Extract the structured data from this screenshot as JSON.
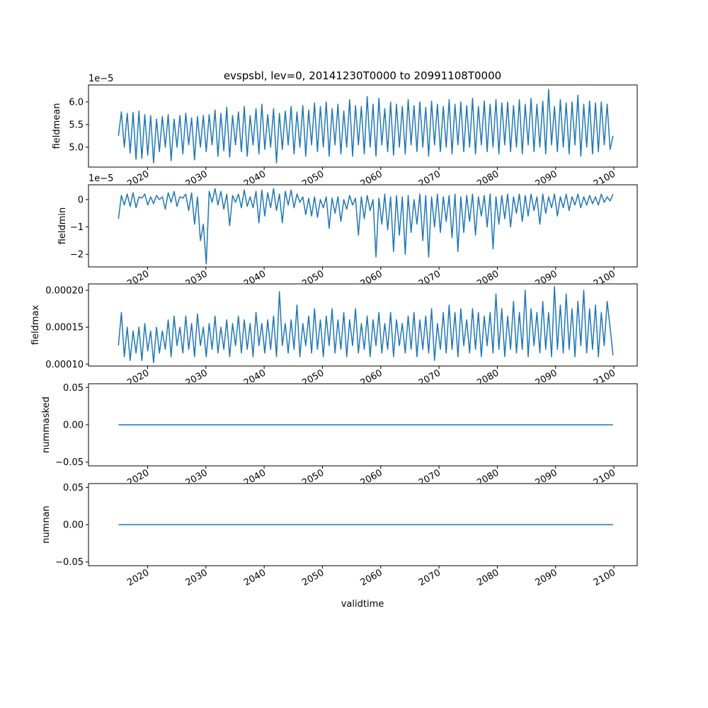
{
  "chart_data": [
    {
      "type": "line",
      "title": "evspsbl, lev=0, 20141230T0000 to 20991108T0000",
      "ylabel": "fieldmean",
      "offset_text": "1e−5",
      "unit_multiplier": 1e-05,
      "ylim": [
        4.56,
        6.375
      ],
      "yticks": [
        {
          "value": 5.0,
          "label": "5.0"
        },
        {
          "value": 5.5,
          "label": "5.5"
        },
        {
          "value": 6.0,
          "label": "6.0"
        }
      ],
      "x_start": 2015.0,
      "x_end": 2099.85,
      "color": "#1f77b4",
      "values": [
        5.25,
        5.78,
        5.0,
        5.75,
        4.87,
        5.77,
        4.73,
        5.8,
        4.75,
        5.72,
        4.82,
        5.7,
        4.65,
        5.62,
        4.9,
        5.68,
        5.0,
        5.72,
        4.7,
        5.62,
        5.0,
        5.7,
        4.85,
        5.75,
        5.05,
        5.65,
        4.72,
        5.68,
        5.0,
        5.7,
        4.9,
        5.72,
        5.05,
        5.82,
        4.8,
        5.75,
        4.92,
        5.88,
        4.78,
        5.7,
        5.05,
        5.78,
        4.9,
        5.9,
        4.8,
        5.7,
        5.05,
        5.85,
        4.85,
        5.95,
        4.95,
        5.72,
        5.0,
        5.85,
        4.65,
        5.75,
        4.95,
        5.8,
        5.05,
        5.9,
        4.85,
        5.78,
        5.0,
        5.92,
        4.8,
        5.82,
        5.05,
        5.98,
        4.9,
        5.9,
        5.0,
        6.0,
        4.8,
        5.85,
        5.05,
        5.95,
        4.85,
        5.8,
        5.0,
        6.05,
        4.8,
        5.92,
        5.05,
        5.9,
        4.85,
        6.12,
        5.0,
        5.95,
        4.8,
        6.08,
        5.05,
        5.85,
        4.9,
        6.0,
        4.82,
        5.95,
        5.0,
        5.9,
        4.85,
        6.05,
        5.05,
        5.92,
        4.9,
        6.0,
        5.0,
        5.88,
        4.8,
        6.02,
        5.05,
        5.95,
        4.9,
        5.9,
        5.0,
        6.05,
        4.85,
        5.95,
        5.05,
        6.0,
        4.9,
        5.92,
        5.0,
        6.08,
        4.85,
        5.9,
        5.05,
        6.02,
        4.9,
        5.95,
        5.0,
        6.05,
        4.85,
        5.98,
        5.05,
        6.0,
        4.9,
        5.92,
        5.0,
        6.05,
        4.85,
        5.95,
        5.05,
        6.08,
        4.9,
        5.95,
        5.0,
        6.02,
        4.85,
        6.28,
        5.05,
        5.9,
        4.9,
        6.05,
        5.0,
        5.98,
        4.85,
        6.0,
        5.05,
        6.15,
        4.8,
        5.95,
        5.0,
        6.02,
        4.85,
        5.98,
        4.9,
        6.0,
        5.05,
        5.95,
        4.95,
        5.25
      ]
    },
    {
      "type": "line",
      "ylabel": "fieldmin",
      "offset_text": "1e−5",
      "unit_multiplier": 1e-05,
      "ylim": [
        -2.46,
        0.54
      ],
      "yticks": [
        {
          "value": -2,
          "label": "−2"
        },
        {
          "value": -1,
          "label": "−1"
        },
        {
          "value": 0,
          "label": "0"
        }
      ],
      "x_start": 2015.0,
      "x_end": 2099.85,
      "color": "#1f77b4",
      "values": [
        -0.7,
        0.15,
        -0.2,
        0.2,
        -0.25,
        0.25,
        -0.3,
        0.1,
        0.05,
        0.2,
        -0.2,
        0.1,
        -0.15,
        0.15,
        0.0,
        0.1,
        -0.35,
        0.25,
        -0.1,
        0.3,
        -0.25,
        0.1,
        0.05,
        0.2,
        -0.4,
        0.25,
        -0.9,
        0.1,
        -1.5,
        -0.9,
        -2.35,
        0.3,
        -0.1,
        0.4,
        -0.2,
        0.3,
        -0.35,
        0.2,
        -0.95,
        0.15,
        -0.1,
        0.2,
        -0.3,
        0.35,
        -0.25,
        0.1,
        -0.3,
        0.3,
        -0.85,
        0.35,
        -0.6,
        0.25,
        -0.3,
        0.4,
        -0.4,
        0.2,
        -0.85,
        0.3,
        -0.2,
        0.35,
        -0.3,
        0.2,
        -0.1,
        0.1,
        -0.55,
        0.05,
        -0.6,
        0.1,
        -0.65,
        0.0,
        -0.3,
        0.1,
        -1.05,
        0.05,
        -0.5,
        0.1,
        -0.8,
        0.0,
        -0.35,
        0.15,
        -0.2,
        0.05,
        -1.3,
        0.1,
        -0.7,
        0.15,
        -0.4,
        0.0,
        -2.1,
        0.05,
        -0.9,
        0.2,
        -1.1,
        0.1,
        -1.9,
        0.15,
        -1.3,
        0.1,
        -2.0,
        0.15,
        -1.2,
        0.0,
        -0.9,
        0.2,
        -1.5,
        0.15,
        -2.1,
        0.1,
        -1.0,
        0.2,
        -1.2,
        0.1,
        -0.8,
        0.15,
        -1.4,
        0.2,
        -1.9,
        0.1,
        -1.2,
        0.15,
        -0.8,
        0.2,
        -1.3,
        0.1,
        -0.6,
        0.15,
        -1.0,
        0.2,
        -1.8,
        0.1,
        -0.9,
        0.15,
        -0.7,
        0.2,
        -1.0,
        0.1,
        -0.5,
        0.2,
        -0.8,
        0.15,
        -0.6,
        0.2,
        -0.4,
        0.1,
        -0.9,
        0.2,
        -0.5,
        0.1,
        -0.3,
        0.2,
        -0.6,
        0.1,
        -0.3,
        0.2,
        -0.4,
        0.1,
        -0.2,
        0.2,
        -0.3,
        0.1,
        -0.2,
        0.15,
        -0.15,
        0.1,
        -0.2,
        0.2,
        -0.1,
        0.1,
        -0.05,
        0.2
      ]
    },
    {
      "type": "line",
      "ylabel": "fieldmax",
      "unit_multiplier": 1e-05,
      "ylim": [
        9.74,
        20.86
      ],
      "yticks": [
        {
          "value": 10,
          "label": "0.00010"
        },
        {
          "value": 15,
          "label": "0.00015"
        },
        {
          "value": 20,
          "label": "0.00020"
        }
      ],
      "x_start": 2015.0,
      "x_end": 2099.85,
      "color": "#1f77b4",
      "values": [
        12.5,
        17,
        11,
        15,
        10.5,
        14.5,
        11.5,
        15,
        10.5,
        15.5,
        11.8,
        14.5,
        10.2,
        15,
        11.5,
        14.5,
        12,
        16,
        11,
        16.5,
        12.5,
        15,
        11.5,
        16.5,
        12,
        15.5,
        11,
        16.8,
        12.5,
        15,
        11,
        15.5,
        12,
        16.5,
        11.5,
        15,
        12,
        16,
        11,
        15.5,
        12.5,
        16.5,
        11.5,
        16,
        12,
        15.5,
        11,
        17,
        12.5,
        15.5,
        11.5,
        16,
        12,
        16.5,
        11,
        19.8,
        12.5,
        15.5,
        11.5,
        16,
        12,
        18,
        11,
        15.5,
        12.5,
        16.5,
        11.5,
        17.5,
        12,
        16,
        11,
        16.5,
        12.5,
        17.5,
        11.5,
        16,
        12,
        17,
        11,
        16,
        12.5,
        17.5,
        11.5,
        15.5,
        12,
        16.5,
        11,
        16,
        12.5,
        17,
        11.5,
        15.5,
        12,
        17,
        11,
        16,
        12.5,
        15.5,
        11.5,
        16.5,
        12,
        17,
        11,
        16,
        12,
        16.5,
        11.5,
        17.5,
        10.5,
        15.5,
        12,
        17,
        11.5,
        18,
        12,
        17,
        11,
        17.5,
        12.5,
        16,
        11.5,
        17.5,
        12,
        17,
        11,
        16.5,
        12.5,
        17,
        11.5,
        19.5,
        12,
        17.5,
        11,
        16.5,
        12,
        18.5,
        11.5,
        17,
        12,
        20,
        11,
        17.5,
        12.5,
        17,
        11.5,
        18.5,
        12,
        17,
        11,
        20.5,
        12,
        18,
        11.5,
        19.5,
        12,
        17.5,
        11,
        18.5,
        12.5,
        20,
        11.5,
        17.5,
        12,
        18,
        11,
        17,
        12.5,
        18.5,
        15,
        11.2
      ]
    },
    {
      "type": "line",
      "ylabel": "nummasked",
      "unit_multiplier": 1,
      "ylim": [
        -0.055,
        0.055
      ],
      "yticks": [
        {
          "value": -0.05,
          "label": "−0.05"
        },
        {
          "value": 0,
          "label": "0.00"
        },
        {
          "value": 0.05,
          "label": "0.05"
        }
      ],
      "x_start": 2015.0,
      "x_end": 2099.85,
      "color": "#1f77b4",
      "values": [
        0,
        0
      ]
    },
    {
      "type": "line",
      "ylabel": "numnan",
      "xlabel": "validtime",
      "unit_multiplier": 1,
      "ylim": [
        -0.055,
        0.055
      ],
      "yticks": [
        {
          "value": -0.05,
          "label": "−0.05"
        },
        {
          "value": 0,
          "label": "0.00"
        },
        {
          "value": 0.05,
          "label": "0.05"
        }
      ],
      "x_start": 2015.0,
      "x_end": 2099.85,
      "color": "#1f77b4",
      "values": [
        0,
        0
      ]
    }
  ],
  "x_axis": {
    "xlim": [
      2009.86,
      2104.0
    ],
    "ticks": [
      {
        "value": 2020,
        "label": "2020"
      },
      {
        "value": 2030,
        "label": "2030"
      },
      {
        "value": 2040,
        "label": "2040"
      },
      {
        "value": 2050,
        "label": "2050"
      },
      {
        "value": 2060,
        "label": "2060"
      },
      {
        "value": 2070,
        "label": "2070"
      },
      {
        "value": 2080,
        "label": "2080"
      },
      {
        "value": 2090,
        "label": "2090"
      },
      {
        "value": 2100,
        "label": "2100"
      }
    ]
  }
}
